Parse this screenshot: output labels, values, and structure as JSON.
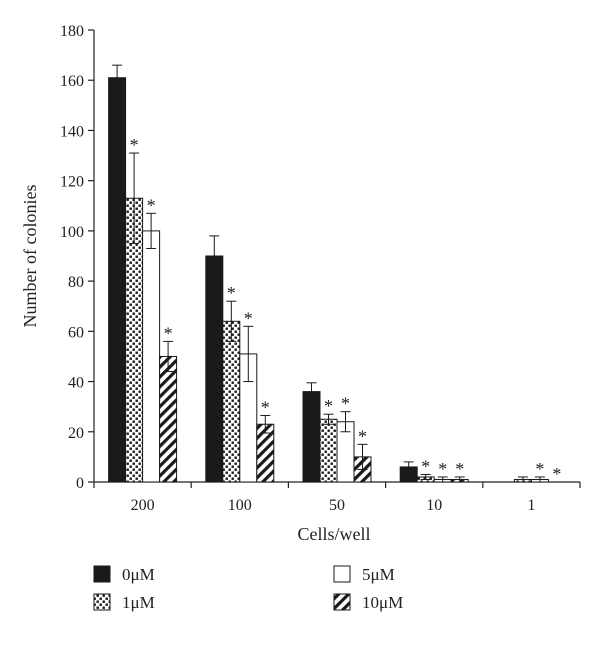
{
  "chart_data": {
    "type": "bar",
    "title": "",
    "xlabel": "Cells/well",
    "ylabel": "Number of colonies",
    "ylim": [
      0,
      180
    ],
    "yticks": [
      0,
      20,
      40,
      60,
      80,
      100,
      120,
      140,
      160,
      180
    ],
    "categories": [
      "200",
      "100",
      "50",
      "10",
      "1"
    ],
    "grid": false,
    "legend_position": "bottom",
    "significance_marker": "*",
    "series": [
      {
        "name": "0μM",
        "pattern": "solid",
        "color": "#1a1a1a",
        "values": [
          161,
          90,
          36,
          6,
          0
        ],
        "errors": [
          5,
          8,
          3.5,
          2,
          0
        ],
        "significant": [
          false,
          false,
          false,
          false,
          false
        ]
      },
      {
        "name": "1μM",
        "pattern": "dots",
        "color": "#1a1a1a",
        "values": [
          113,
          64,
          25,
          2,
          1
        ],
        "errors": [
          18,
          8,
          2,
          1,
          1
        ],
        "significant": [
          true,
          true,
          true,
          true,
          false
        ]
      },
      {
        "name": "5μM",
        "pattern": "empty",
        "color": "#ffffff",
        "values": [
          100,
          51,
          24,
          1,
          1
        ],
        "errors": [
          7,
          11,
          4,
          1,
          1
        ],
        "significant": [
          true,
          true,
          true,
          true,
          true
        ]
      },
      {
        "name": "10μM",
        "pattern": "stripes",
        "color": "#1a1a1a",
        "values": [
          50,
          23,
          10,
          1,
          0
        ],
        "errors": [
          6,
          3.5,
          5,
          1,
          0
        ],
        "significant": [
          true,
          true,
          true,
          true,
          true
        ]
      }
    ]
  }
}
